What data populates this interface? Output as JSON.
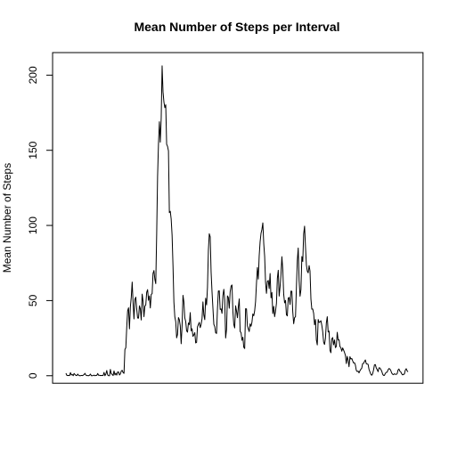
{
  "chart_data": {
    "type": "line",
    "title": "Mean Number of Steps per Interval",
    "xlabel": "",
    "ylabel": "Mean Number of Steps",
    "ylim": [
      -5,
      215
    ],
    "yticks": [
      0,
      50,
      100,
      150,
      200
    ],
    "x_axis_shown": false,
    "grid": false,
    "legend": "none",
    "line_color": "#000000",
    "series": [
      {
        "values": [
          1.7,
          0.3,
          0.1,
          0.2,
          0.1,
          2.1,
          0.5,
          0.9,
          0,
          1.5,
          0.8,
          0.2,
          0.1,
          1.1,
          0.3,
          0,
          0,
          0.2,
          0.1,
          0.3,
          0.8,
          1.6,
          0.4,
          0.1,
          0.1,
          0,
          0.3,
          1.1,
          0,
          0,
          0.1,
          0.4,
          0,
          0.2,
          0.2,
          1.5,
          0.3,
          0.3,
          0.1,
          0.2,
          0.1,
          0.2,
          2.2,
          0,
          1.1,
          3.5,
          0.5,
          0,
          0,
          4.2,
          1.3,
          0.9,
          0.1,
          3.2,
          0.5,
          1.7,
          0.4,
          2.5,
          2.5,
          0.5,
          1.2,
          3.1,
          3.6,
          2.1,
          1.6,
          17.5,
          18.6,
          31.9,
          43.2,
          45.2,
          31.2,
          45.8,
          52.2,
          62.3,
          48.6,
          37.8,
          50.8,
          52.3,
          44.4,
          38.4,
          38.3,
          46.5,
          44.5,
          37.1,
          54.3,
          49.6,
          39.3,
          46.3,
          47.1,
          55.5,
          57.3,
          50.2,
          53.1,
          45.1,
          54.1,
          54.6,
          68.1,
          70,
          64.1,
          61.3,
          93.8,
          132.4,
          154.2,
          169,
          155.4,
          171.4,
          206.2,
          188.9,
          182.1,
          178.4,
          180.3,
          154,
          152.6,
          149.6,
          108.5,
          109.4,
          104.2,
          93.5,
          73.2,
          49,
          39.2,
          36.1,
          25.2,
          27.5,
          38.7,
          37.3,
          33.3,
          21.3,
          33.2,
          53.5,
          49.2,
          38.5,
          36.2,
          29.9,
          29,
          35.1,
          34,
          42,
          29.9,
          31.3,
          26.2,
          27.2,
          28.7,
          21.8,
          22.2,
          32.5,
          34.1,
          35.5,
          32,
          34.1,
          38,
          49.1,
          40.4,
          37.3,
          51.6,
          47.1,
          58.8,
          83.6,
          94.5,
          92.4,
          68.9,
          55.9,
          45,
          34.2,
          32.7,
          28.6,
          28.1,
          44.6,
          56.4,
          56.5,
          44.1,
          44.5,
          41.5,
          53.3,
          57.5,
          50.4,
          25.1,
          30.7,
          53.1,
          52.1,
          44.9,
          55.8,
          59.6,
          60.4,
          42.8,
          34,
          31.8,
          46.5,
          43.1,
          38.6,
          45.8,
          51.1,
          29.4,
          28.7,
          23.6,
          25.6,
          18.9,
          18.1,
          44.6,
          44.5,
          33.2,
          31.1,
          29.4,
          34.5,
          32.9,
          35.6,
          41.1,
          39.9,
          43.2,
          49.4,
          61.5,
          72,
          64.3,
          79.8,
          89.1,
          94.7,
          97.4,
          101.7,
          88,
          79.4,
          62.2,
          54.8,
          62.8,
          63.4,
          58,
          68,
          51.8,
          55.4,
          41.4,
          46.2,
          39.3,
          43.2,
          48.1,
          64.8,
          70.2,
          53,
          59.2,
          67.4,
          79.2,
          70.3,
          54.1,
          48.5,
          50.1,
          40.6,
          39.8,
          51.7,
          52.1,
          47.4,
          56.3,
          56.2,
          42.5,
          34.6,
          38.7,
          39.2,
          58.8,
          76.6,
          85,
          63.3,
          52.9,
          57.3,
          79.3,
          76,
          94.3,
          99.5,
          85.9,
          73.8,
          69.6,
          68.5,
          73.3,
          69.7,
          51.1,
          44.3,
          44.4,
          41.5,
          33.9,
          37.4,
          23.8,
          20.5,
          37.4,
          35.4,
          35.9,
          36.6,
          33.5,
          29.4,
          22.3,
          20.8,
          24.9,
          35.2,
          39.3,
          29.1,
          29.7,
          16.9,
          15.3,
          24.6,
          25.4,
          20.6,
          23.8,
          18.7,
          19.5,
          28.9,
          23.8,
          23.9,
          19.4,
          18.7,
          16.3,
          18.5,
          17.1,
          15.5,
          13.6,
          8.1,
          12.9,
          10.3,
          6,
          12.7,
          11.1,
          11.5,
          9.9,
          8.5,
          8.7,
          7.1,
          3.6,
          2.8,
          3.1,
          1.9,
          3.3,
          4.3,
          5,
          8.1,
          8.2,
          9.5,
          10.5,
          8,
          7.8,
          7.6,
          4.3,
          2.6,
          1,
          0.3,
          1.3,
          3.8,
          7.2,
          7.4,
          5.2,
          4.1,
          2.7,
          5.3,
          5.2,
          4.2,
          3.1,
          1.1,
          0.2,
          0.2,
          1.6,
          2.2,
          2.4,
          3.9,
          4.8,
          4.5,
          3.5,
          1.8,
          1,
          0.7,
          1.3,
          1,
          0.9,
          1.3,
          3.8,
          4.5,
          3,
          2.6,
          1.3,
          0.6,
          0.9,
          1.1,
          3.7,
          4.7,
          3.3,
          2.6
        ]
      }
    ]
  }
}
